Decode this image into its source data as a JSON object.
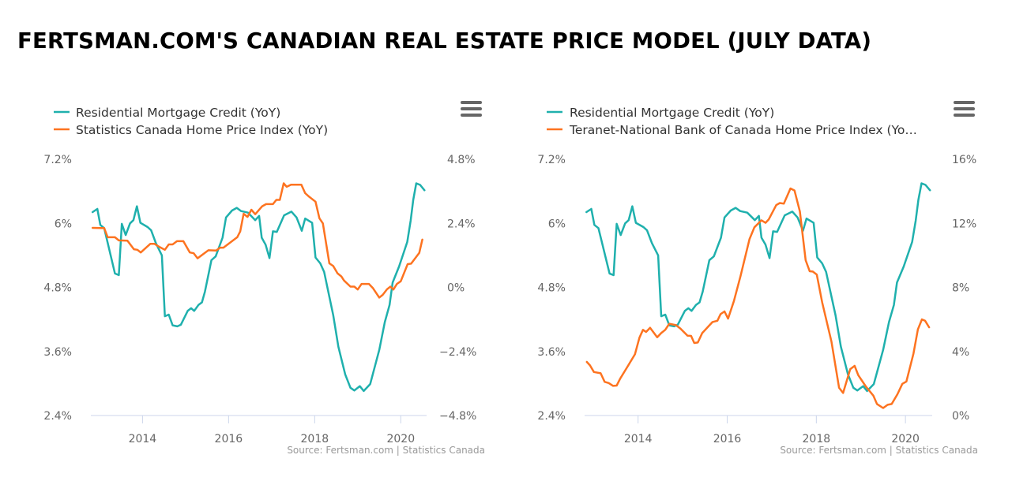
{
  "title": "FERTSMAN.COM'S CANADIAN REAL ESTATE PRICE MODEL (JULY DATA)",
  "colors": {
    "teal": "#1fb0ad",
    "orange": "#fd7320",
    "axis": "#ccd6eb",
    "text": "#666666"
  },
  "chart_data": [
    {
      "type": "line",
      "legend_placement": "top-left",
      "menu_icon": "hamburger-menu-icon",
      "source": "Source: Fertsman.com | Statistics Canada",
      "x_ticks": [
        "2014",
        "2016",
        "2018",
        "2020"
      ],
      "xlim": [
        2012.8,
        2020.6
      ],
      "y_left": {
        "ticks": [
          "7.2%",
          "6%",
          "4.8%",
          "3.6%",
          "2.4%"
        ],
        "lim": [
          2.4,
          7.2
        ]
      },
      "y_right": {
        "ticks": [
          "4.8%",
          "2.4%",
          "0%",
          "−2.4%",
          "−4.8%"
        ],
        "lim": [
          -4.8,
          4.8
        ]
      },
      "grid": false,
      "series": [
        {
          "name": "Residential Mortgage Credit (YoY)",
          "axis": "left",
          "color": "#1fb0ad",
          "points": [
            [
              2012.84,
              6.21
            ],
            [
              2012.95,
              6.27
            ],
            [
              2013.02,
              5.97
            ],
            [
              2013.11,
              5.91
            ],
            [
              2013.36,
              5.06
            ],
            [
              2013.45,
              5.03
            ],
            [
              2013.52,
              5.99
            ],
            [
              2013.61,
              5.78
            ],
            [
              2013.71,
              6.0
            ],
            [
              2013.79,
              6.06
            ],
            [
              2013.87,
              6.32
            ],
            [
              2013.95,
              6.01
            ],
            [
              2014.12,
              5.93
            ],
            [
              2014.2,
              5.87
            ],
            [
              2014.31,
              5.63
            ],
            [
              2014.45,
              5.4
            ],
            [
              2014.52,
              4.26
            ],
            [
              2014.61,
              4.29
            ],
            [
              2014.7,
              4.09
            ],
            [
              2014.81,
              4.07
            ],
            [
              2014.89,
              4.1
            ],
            [
              2015.05,
              4.36
            ],
            [
              2015.13,
              4.41
            ],
            [
              2015.2,
              4.36
            ],
            [
              2015.3,
              4.47
            ],
            [
              2015.38,
              4.52
            ],
            [
              2015.45,
              4.72
            ],
            [
              2015.6,
              5.31
            ],
            [
              2015.7,
              5.38
            ],
            [
              2015.86,
              5.73
            ],
            [
              2015.94,
              6.11
            ],
            [
              2016.08,
              6.24
            ],
            [
              2016.19,
              6.29
            ],
            [
              2016.29,
              6.23
            ],
            [
              2016.45,
              6.2
            ],
            [
              2016.62,
              6.06
            ],
            [
              2016.71,
              6.14
            ],
            [
              2016.77,
              5.73
            ],
            [
              2016.86,
              5.6
            ],
            [
              2016.95,
              5.35
            ],
            [
              2017.03,
              5.85
            ],
            [
              2017.12,
              5.84
            ],
            [
              2017.29,
              6.15
            ],
            [
              2017.46,
              6.22
            ],
            [
              2017.58,
              6.11
            ],
            [
              2017.7,
              5.86
            ],
            [
              2017.78,
              6.09
            ],
            [
              2017.94,
              6.01
            ],
            [
              2018.02,
              5.36
            ],
            [
              2018.13,
              5.25
            ],
            [
              2018.22,
              5.09
            ],
            [
              2018.43,
              4.28
            ],
            [
              2018.55,
              3.69
            ],
            [
              2018.71,
              3.17
            ],
            [
              2018.83,
              2.92
            ],
            [
              2018.92,
              2.87
            ],
            [
              2019.05,
              2.95
            ],
            [
              2019.14,
              2.86
            ],
            [
              2019.29,
              2.99
            ],
            [
              2019.5,
              3.63
            ],
            [
              2019.63,
              4.15
            ],
            [
              2019.74,
              4.47
            ],
            [
              2019.81,
              4.89
            ],
            [
              2019.96,
              5.19
            ],
            [
              2020.15,
              5.65
            ],
            [
              2020.23,
              6.05
            ],
            [
              2020.29,
              6.44
            ],
            [
              2020.36,
              6.75
            ],
            [
              2020.45,
              6.72
            ],
            [
              2020.55,
              6.62
            ]
          ]
        },
        {
          "name": "Statistics Canada Home Price Index (YoY)",
          "axis": "right",
          "color": "#fd7320",
          "points": [
            [
              2012.84,
              2.23
            ],
            [
              2013.11,
              2.22
            ],
            [
              2013.19,
              1.88
            ],
            [
              2013.36,
              1.88
            ],
            [
              2013.45,
              1.76
            ],
            [
              2013.65,
              1.75
            ],
            [
              2013.8,
              1.43
            ],
            [
              2013.88,
              1.41
            ],
            [
              2013.96,
              1.31
            ],
            [
              2014.18,
              1.63
            ],
            [
              2014.28,
              1.63
            ],
            [
              2014.4,
              1.51
            ],
            [
              2014.52,
              1.41
            ],
            [
              2014.61,
              1.61
            ],
            [
              2014.7,
              1.61
            ],
            [
              2014.8,
              1.73
            ],
            [
              2014.95,
              1.73
            ],
            [
              2015.1,
              1.31
            ],
            [
              2015.19,
              1.28
            ],
            [
              2015.28,
              1.09
            ],
            [
              2015.53,
              1.39
            ],
            [
              2015.71,
              1.38
            ],
            [
              2015.8,
              1.49
            ],
            [
              2015.88,
              1.49
            ],
            [
              2016.2,
              1.88
            ],
            [
              2016.27,
              2.1
            ],
            [
              2016.35,
              2.76
            ],
            [
              2016.44,
              2.64
            ],
            [
              2016.53,
              2.91
            ],
            [
              2016.62,
              2.74
            ],
            [
              2016.78,
              3.04
            ],
            [
              2016.87,
              3.12
            ],
            [
              2017.03,
              3.12
            ],
            [
              2017.11,
              3.28
            ],
            [
              2017.19,
              3.28
            ],
            [
              2017.28,
              3.9
            ],
            [
              2017.35,
              3.77
            ],
            [
              2017.45,
              3.85
            ],
            [
              2017.69,
              3.85
            ],
            [
              2017.78,
              3.53
            ],
            [
              2017.87,
              3.4
            ],
            [
              2018.02,
              3.21
            ],
            [
              2018.11,
              2.59
            ],
            [
              2018.19,
              2.4
            ],
            [
              2018.34,
              0.9
            ],
            [
              2018.43,
              0.8
            ],
            [
              2018.53,
              0.53
            ],
            [
              2018.62,
              0.41
            ],
            [
              2018.68,
              0.26
            ],
            [
              2018.83,
              0.03
            ],
            [
              2018.92,
              0.03
            ],
            [
              2019.0,
              -0.08
            ],
            [
              2019.09,
              0.13
            ],
            [
              2019.26,
              0.13
            ],
            [
              2019.35,
              -0.02
            ],
            [
              2019.5,
              -0.38
            ],
            [
              2019.58,
              -0.28
            ],
            [
              2019.68,
              -0.07
            ],
            [
              2019.76,
              0.03
            ],
            [
              2019.83,
              -0.08
            ],
            [
              2019.91,
              0.13
            ],
            [
              2020.0,
              0.23
            ],
            [
              2020.16,
              0.87
            ],
            [
              2020.24,
              0.89
            ],
            [
              2020.43,
              1.29
            ],
            [
              2020.5,
              1.79
            ]
          ]
        }
      ]
    },
    {
      "type": "line",
      "legend_placement": "top-left",
      "menu_icon": "hamburger-menu-icon",
      "source": "Source: Fertsman.com | Statistics Canada",
      "x_ticks": [
        "2014",
        "2016",
        "2018",
        "2020"
      ],
      "xlim": [
        2012.8,
        2020.6
      ],
      "y_left": {
        "ticks": [
          "7.2%",
          "6%",
          "4.8%",
          "3.6%",
          "2.4%"
        ],
        "lim": [
          2.4,
          7.2
        ]
      },
      "y_right": {
        "ticks": [
          "16%",
          "12%",
          "8%",
          "4%",
          "0%"
        ],
        "lim": [
          0,
          16
        ]
      },
      "grid": false,
      "series": [
        {
          "name": "Residential Mortgage Credit (YoY)",
          "axis": "left",
          "color": "#1fb0ad",
          "same_as": "chart_data.0.series.0"
        },
        {
          "name": "Teranet-National Bank of Canada Home Price Index (Yo…",
          "axis": "right",
          "color": "#fd7320",
          "points": [
            [
              2012.85,
              3.35
            ],
            [
              2012.92,
              3.13
            ],
            [
              2013.01,
              2.72
            ],
            [
              2013.16,
              2.64
            ],
            [
              2013.25,
              2.1
            ],
            [
              2013.34,
              2.03
            ],
            [
              2013.44,
              1.85
            ],
            [
              2013.52,
              1.87
            ],
            [
              2013.6,
              2.31
            ],
            [
              2013.78,
              3.13
            ],
            [
              2013.93,
              3.82
            ],
            [
              2014.03,
              4.86
            ],
            [
              2014.11,
              5.35
            ],
            [
              2014.18,
              5.22
            ],
            [
              2014.27,
              5.48
            ],
            [
              2014.43,
              4.89
            ],
            [
              2014.52,
              5.15
            ],
            [
              2014.61,
              5.35
            ],
            [
              2014.7,
              5.73
            ],
            [
              2014.85,
              5.64
            ],
            [
              2014.95,
              5.43
            ],
            [
              2015.11,
              4.98
            ],
            [
              2015.19,
              4.97
            ],
            [
              2015.26,
              4.53
            ],
            [
              2015.34,
              4.56
            ],
            [
              2015.44,
              5.15
            ],
            [
              2015.67,
              5.84
            ],
            [
              2015.78,
              5.92
            ],
            [
              2015.85,
              6.33
            ],
            [
              2015.94,
              6.5
            ],
            [
              2016.02,
              6.05
            ],
            [
              2016.15,
              7.15
            ],
            [
              2016.3,
              8.71
            ],
            [
              2016.5,
              11.01
            ],
            [
              2016.61,
              11.75
            ],
            [
              2016.77,
              12.19
            ],
            [
              2016.86,
              12.03
            ],
            [
              2016.93,
              12.24
            ],
            [
              2017.1,
              13.14
            ],
            [
              2017.18,
              13.27
            ],
            [
              2017.27,
              13.23
            ],
            [
              2017.42,
              14.18
            ],
            [
              2017.51,
              14.05
            ],
            [
              2017.63,
              12.74
            ],
            [
              2017.76,
              9.7
            ],
            [
              2017.85,
              9.01
            ],
            [
              2017.92,
              8.99
            ],
            [
              2018.01,
              8.8
            ],
            [
              2018.13,
              7.07
            ],
            [
              2018.34,
              4.61
            ],
            [
              2018.51,
              1.74
            ],
            [
              2018.6,
              1.41
            ],
            [
              2018.76,
              2.89
            ],
            [
              2018.86,
              3.1
            ],
            [
              2018.94,
              2.52
            ],
            [
              2019.11,
              1.82
            ],
            [
              2019.28,
              1.24
            ],
            [
              2019.36,
              0.72
            ],
            [
              2019.5,
              0.47
            ],
            [
              2019.6,
              0.67
            ],
            [
              2019.69,
              0.72
            ],
            [
              2019.82,
              1.33
            ],
            [
              2019.93,
              1.98
            ],
            [
              2020.02,
              2.12
            ],
            [
              2020.18,
              3.87
            ],
            [
              2020.28,
              5.38
            ],
            [
              2020.37,
              6.0
            ],
            [
              2020.44,
              5.92
            ],
            [
              2020.53,
              5.51
            ]
          ]
        }
      ]
    }
  ]
}
